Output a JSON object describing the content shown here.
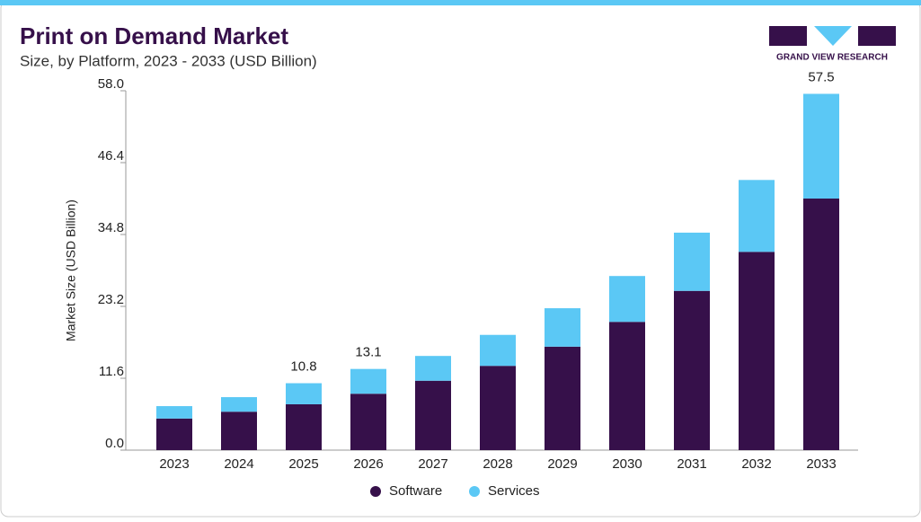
{
  "chart_data": {
    "type": "stacked-bar",
    "title": "Print on Demand Market",
    "subtitle": "Size, by Platform, 2023 - 2033 (USD Billion)",
    "y_label": "Market Size (USD Billion)",
    "brand": "GRAND VIEW RESEARCH",
    "categories": [
      "2023",
      "2024",
      "2025",
      "2026",
      "2027",
      "2028",
      "2029",
      "2030",
      "2031",
      "2032",
      "2033"
    ],
    "series": [
      {
        "name": "Software",
        "color": "#36104a",
        "values": [
          5.1,
          6.2,
          7.4,
          9.1,
          11.2,
          13.6,
          16.7,
          20.7,
          25.7,
          32.0,
          40.6
        ]
      },
      {
        "name": "Services",
        "color": "#5bc8f5",
        "values": [
          2.0,
          2.35,
          3.4,
          4.0,
          4.0,
          5.0,
          6.2,
          7.4,
          9.4,
          11.6,
          16.9
        ]
      }
    ],
    "totals": [
      null,
      null,
      10.8,
      13.1,
      null,
      null,
      null,
      null,
      null,
      null,
      57.5
    ],
    "ylim": [
      0,
      58
    ],
    "yticks": [
      {
        "value": 0,
        "label": "0.0"
      },
      {
        "value": 11.6,
        "label": "11.6"
      },
      {
        "value": 23.2,
        "label": "23.2"
      },
      {
        "value": 34.8,
        "label": "34.8"
      },
      {
        "value": 46.4,
        "label": "46.4"
      },
      {
        "value": 58,
        "label": "58.0"
      }
    ],
    "legend": "bottom"
  }
}
